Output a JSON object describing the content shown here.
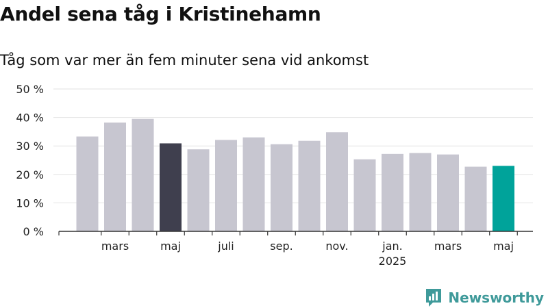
{
  "header": {
    "title": "Andel sena tåg i Kristinehamn",
    "subtitle": "Tåg som var mer än fem minuter sena vid ankomst"
  },
  "brand": {
    "name": "Newsworthy",
    "icon": "newsworthy-logo-icon"
  },
  "colors": {
    "default_bar": "#c7c6d0",
    "highlight_bar": "#3f3f4e",
    "latest_bar": "#00a39a",
    "grid": "#e2e2e2",
    "axis": "#333333",
    "brand": "#3f9a9a"
  },
  "chart_data": {
    "type": "bar",
    "title": "Andel sena tåg i Kristinehamn",
    "subtitle": "Tåg som var mer än fem minuter sena vid ankomst",
    "xlabel": "",
    "ylabel": "",
    "ylim": [
      0,
      50
    ],
    "yticks": [
      0,
      10,
      20,
      30,
      40,
      50
    ],
    "ytick_labels": [
      "0 %",
      "10 %",
      "20 %",
      "30 %",
      "40 %",
      "50 %"
    ],
    "grid": true,
    "categories": [
      "2024-02",
      "2024-03",
      "2024-04",
      "2024-05",
      "2024-06",
      "2024-07",
      "2024-08",
      "2024-09",
      "2024-10",
      "2024-11",
      "2024-12",
      "2025-01",
      "2025-02",
      "2025-03",
      "2025-04",
      "2025-05"
    ],
    "values": [
      33.3,
      38.2,
      39.5,
      30.9,
      28.8,
      32.1,
      33.0,
      30.6,
      31.8,
      34.8,
      25.3,
      27.2,
      27.5,
      27.0,
      22.7,
      23.0
    ],
    "highlight": {
      "2024-05": "highlight",
      "2025-05": "latest"
    },
    "xtick_labels": [
      {
        "category": "2024-03",
        "label": "mars"
      },
      {
        "category": "2024-05",
        "label": "maj"
      },
      {
        "category": "2024-07",
        "label": "juli"
      },
      {
        "category": "2024-09",
        "label": "sep."
      },
      {
        "category": "2024-11",
        "label": "nov."
      },
      {
        "category": "2025-01",
        "label": "jan.",
        "sublabel": "2025"
      },
      {
        "category": "2025-03",
        "label": "mars"
      },
      {
        "category": "2025-05",
        "label": "maj"
      }
    ]
  }
}
